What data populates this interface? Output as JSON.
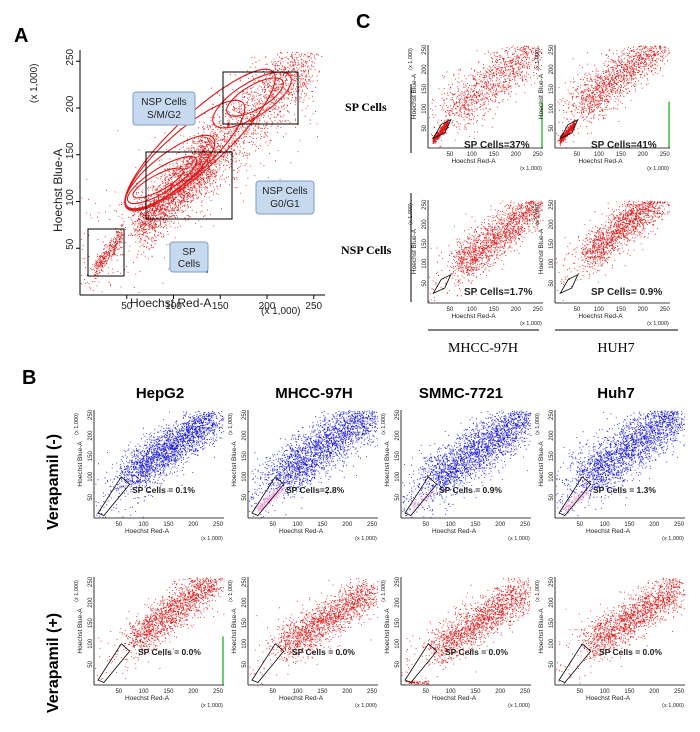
{
  "panels": {
    "a": "A",
    "b": "B",
    "c": "C"
  },
  "colors": {
    "red": "#e01818",
    "blue": "#1a1adc",
    "pink": "#f2a6d8",
    "box_fill": "#c6d9ee",
    "green": "#22b022"
  },
  "main_plot": {
    "xlabel": "Hoechst Red-A",
    "ylabel": "Hoechst Blue-A",
    "x_ticks": [
      "50",
      "100",
      "150",
      "200",
      "250"
    ],
    "y_ticks": [
      "50",
      "100",
      "150",
      "200",
      "250"
    ],
    "x_unit": "(x 1,000)",
    "y_unit": "(x 1,000)",
    "labels": {
      "nsp_sm_1": "NSP Cells",
      "nsp_sm_2": "S/M/G2",
      "nsp_g0_1": "NSP Cells",
      "nsp_g0_2": "G0/G1",
      "sp_1": "SP",
      "sp_2": "Cells"
    }
  },
  "small_axis": {
    "xlabel": "Hoechst Red-A",
    "ylabel": "Hoechst Blue-A",
    "ticks": [
      "50",
      "100",
      "150",
      "200",
      "250"
    ],
    "unit": "(x 1,000)"
  },
  "panel_b": {
    "columns": [
      "HepG2",
      "MHCC-97H",
      "SMMC-7721",
      "Huh7"
    ],
    "rows": [
      "Verapamil (-)",
      "Verapamil (+)"
    ]
  },
  "panel_c": {
    "rows": [
      "SP Cells",
      "NSP Cells"
    ],
    "columns": [
      "MHCC-97H",
      "HUH7"
    ]
  },
  "chart_data": [
    {
      "type": "scatter",
      "title": "A",
      "xlabel": "Hoechst Red-A",
      "ylabel": "Hoechst Blue-A",
      "xlim": [
        0,
        262
      ],
      "ylim": [
        0,
        262
      ],
      "units": "(x 1,000)",
      "gates": [
        "SP Cells",
        "NSP Cells G0/G1",
        "NSP Cells S/M/G2"
      ]
    },
    {
      "type": "scatter",
      "title": "B",
      "xlim": [
        0,
        262
      ],
      "ylim": [
        0,
        262
      ],
      "series": [
        {
          "name": "HepG2 Verapamil (-)",
          "value_label": "SP Cells = 0.1%",
          "sp_percent": 0.1
        },
        {
          "name": "MHCC-97H Verapamil (-)",
          "value_label": "SP Cells=2.8%",
          "sp_percent": 2.8
        },
        {
          "name": "SMMC-7721 Verapamil (-)",
          "value_label": "SP Cells = 0.9%",
          "sp_percent": 0.9
        },
        {
          "name": "Huh7 Verapamil (-)",
          "value_label": "SP Cells = 1.3%",
          "sp_percent": 1.3
        },
        {
          "name": "HepG2 Verapamil (+)",
          "value_label": "SP Cells = 0.0%",
          "sp_percent": 0.0
        },
        {
          "name": "MHCC-97H Verapamil (+)",
          "value_label": "SP Cells = 0.0%",
          "sp_percent": 0.0
        },
        {
          "name": "SMMC-7721 Verapamil (+)",
          "value_label": "SP Cells = 0.0%",
          "sp_percent": 0.0
        },
        {
          "name": "Huh7 Verapamil (+)",
          "value_label": "SP Cells = 0.0%",
          "sp_percent": 0.0
        }
      ]
    },
    {
      "type": "scatter",
      "title": "C",
      "xlim": [
        0,
        262
      ],
      "ylim": [
        0,
        262
      ],
      "series": [
        {
          "name": "MHCC-97H SP Cells",
          "value_label": "SP Cells=37%",
          "sp_percent": 37
        },
        {
          "name": "HUH7 SP Cells",
          "value_label": "SP Cells=41%",
          "sp_percent": 41
        },
        {
          "name": "MHCC-97H NSP Cells",
          "value_label": "SP Cells=1.7%",
          "sp_percent": 1.7
        },
        {
          "name": "HUH7 NSP Cells",
          "value_label": "SP Cells= 0.9%",
          "sp_percent": 0.9
        }
      ]
    }
  ]
}
